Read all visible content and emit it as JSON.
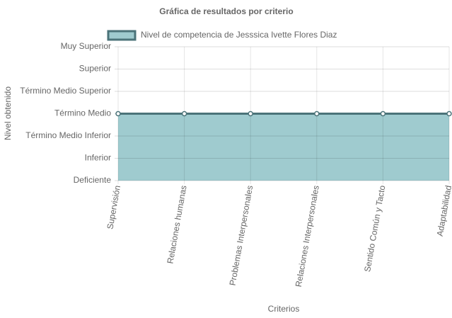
{
  "chart_data": {
    "type": "line",
    "title": "Gráfica de resultados por criterio",
    "x_label": "Criterios",
    "y_label": "Nivel obtenido",
    "categories": [
      "Supervisión",
      "Relaciones humanas",
      "Problemas Interpersonales",
      "Relaciones Interpersonales",
      "Sentido Común y Tacto",
      "Adaptabilidad"
    ],
    "series": [
      {
        "name": "Nivel de competencia de Jesssica Ivette Flores Diaz",
        "color": "#4b7379",
        "fill": "#9fcbcf",
        "values": [
          3,
          3,
          3,
          3,
          3,
          3
        ]
      }
    ],
    "ylim": [
      0,
      6
    ],
    "yticks": [
      {
        "value": 0,
        "label": "Deficiente"
      },
      {
        "value": 1,
        "label": "Inferior"
      },
      {
        "value": 2,
        "label": "Término Medio Inferior"
      },
      {
        "value": 3,
        "label": "Término Medio"
      },
      {
        "value": 4,
        "label": "Término Medio Superior"
      },
      {
        "value": 5,
        "label": "Superior"
      },
      {
        "value": 6,
        "label": "Muy Superior"
      }
    ],
    "grid": true,
    "legend": "top"
  }
}
